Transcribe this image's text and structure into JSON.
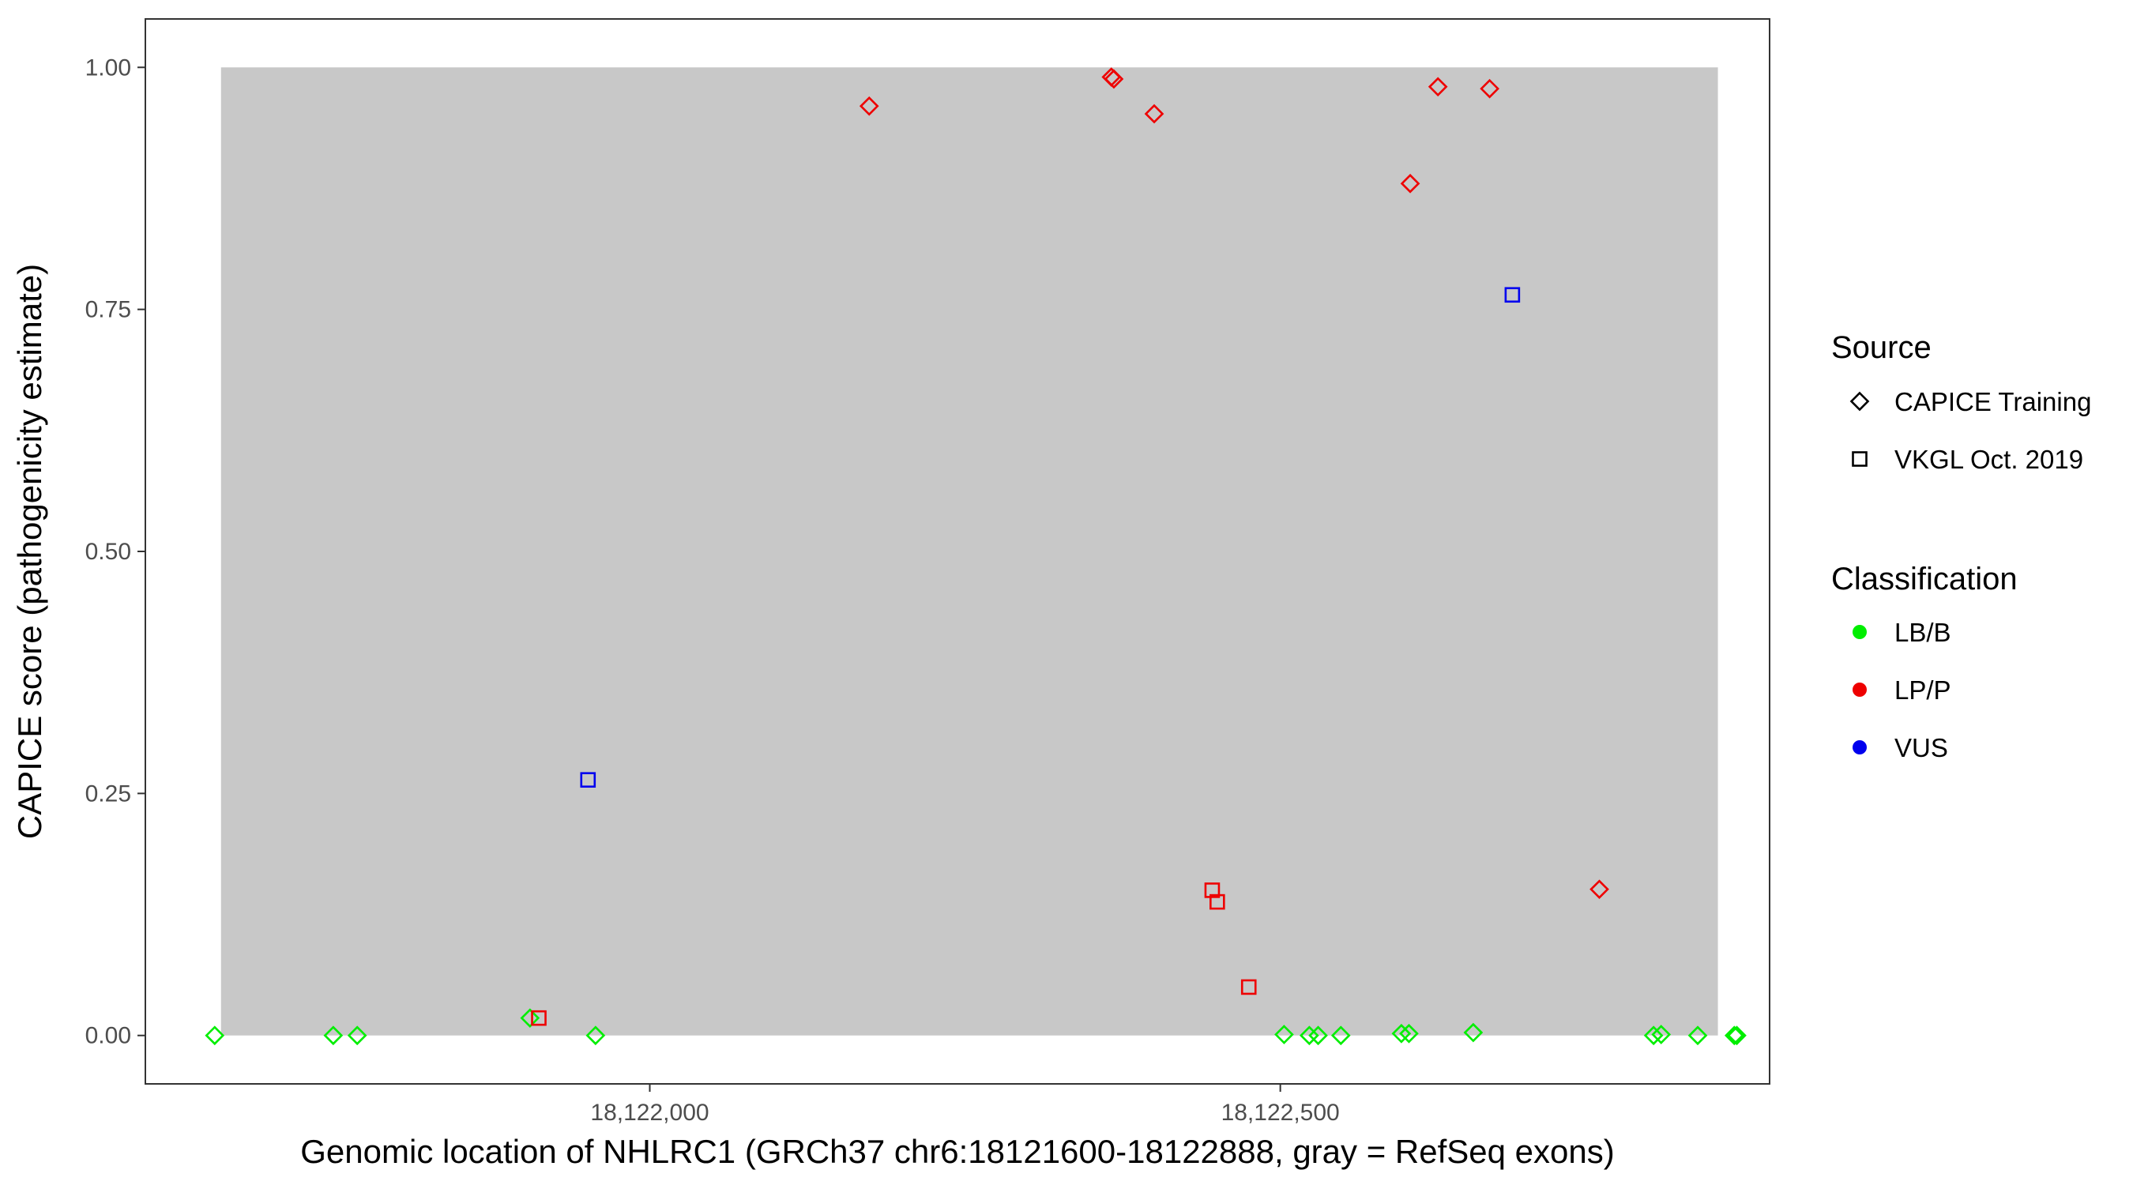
{
  "chart_data": {
    "type": "scatter",
    "xlabel": "Genomic location of NHLRC1 (GRCh37 chr6:18121600-18122888, gray = RefSeq exons)",
    "ylabel": "CAPICE score (pathogenicity estimate)",
    "xlim": [
      18121600,
      18122888
    ],
    "ylim": [
      -0.05,
      1.05
    ],
    "x_ticks": [
      18122000,
      18122500
    ],
    "x_tick_labels": [
      "18,122,000",
      "18,122,500"
    ],
    "y_ticks": [
      0,
      0.25,
      0.5,
      0.75,
      1.0
    ],
    "y_tick_labels": [
      "0.00",
      "0.25",
      "0.50",
      "0.75",
      "1.00"
    ],
    "grid": false,
    "exon_region": [
      18121660,
      18122847
    ],
    "legend_position": "right",
    "legends": {
      "source": {
        "title": "Source",
        "items": [
          {
            "label": "CAPICE Training",
            "shape": "diamond"
          },
          {
            "label": "VKGL Oct. 2019",
            "shape": "square"
          }
        ]
      },
      "classification": {
        "title": "Classification",
        "items": [
          {
            "label": "LB/B",
            "color": "#00ee00"
          },
          {
            "label": "LP/P",
            "color": "#ee0000"
          },
          {
            "label": "VUS",
            "color": "#0000ee"
          }
        ]
      }
    },
    "points": [
      {
        "x": 18121655,
        "y": 0.0,
        "source": "CAPICE Training",
        "classification": "LB/B"
      },
      {
        "x": 18121749,
        "y": 0.0,
        "source": "CAPICE Training",
        "classification": "LB/B"
      },
      {
        "x": 18121768,
        "y": 0.0,
        "source": "CAPICE Training",
        "classification": "LB/B"
      },
      {
        "x": 18121905,
        "y": 0.018,
        "source": "CAPICE Training",
        "classification": "LB/B"
      },
      {
        "x": 18121912,
        "y": 0.018,
        "source": "VKGL Oct. 2019",
        "classification": "LP/P"
      },
      {
        "x": 18121951,
        "y": 0.264,
        "source": "VKGL Oct. 2019",
        "classification": "VUS"
      },
      {
        "x": 18121957,
        "y": 0.0,
        "source": "CAPICE Training",
        "classification": "LB/B"
      },
      {
        "x": 18122174,
        "y": 0.96,
        "source": "CAPICE Training",
        "classification": "LP/P"
      },
      {
        "x": 18122366,
        "y": 0.99,
        "source": "CAPICE Training",
        "classification": "LP/P"
      },
      {
        "x": 18122368,
        "y": 0.988,
        "source": "CAPICE Training",
        "classification": "LP/P"
      },
      {
        "x": 18122400,
        "y": 0.952,
        "source": "CAPICE Training",
        "classification": "LP/P"
      },
      {
        "x": 18122446,
        "y": 0.15,
        "source": "VKGL Oct. 2019",
        "classification": "LP/P"
      },
      {
        "x": 18122450,
        "y": 0.138,
        "source": "VKGL Oct. 2019",
        "classification": "LP/P"
      },
      {
        "x": 18122475,
        "y": 0.05,
        "source": "VKGL Oct. 2019",
        "classification": "LP/P"
      },
      {
        "x": 18122503,
        "y": 0.001,
        "source": "CAPICE Training",
        "classification": "LB/B"
      },
      {
        "x": 18122523,
        "y": 0.0,
        "source": "CAPICE Training",
        "classification": "LB/B"
      },
      {
        "x": 18122530,
        "y": 0.0,
        "source": "CAPICE Training",
        "classification": "LB/B"
      },
      {
        "x": 18122548,
        "y": 0.0,
        "source": "CAPICE Training",
        "classification": "LB/B"
      },
      {
        "x": 18122596,
        "y": 0.002,
        "source": "CAPICE Training",
        "classification": "LB/B"
      },
      {
        "x": 18122602,
        "y": 0.002,
        "source": "CAPICE Training",
        "classification": "LB/B"
      },
      {
        "x": 18122603,
        "y": 0.88,
        "source": "CAPICE Training",
        "classification": "LP/P"
      },
      {
        "x": 18122625,
        "y": 0.98,
        "source": "CAPICE Training",
        "classification": "LP/P"
      },
      {
        "x": 18122653,
        "y": 0.003,
        "source": "CAPICE Training",
        "classification": "LB/B"
      },
      {
        "x": 18122666,
        "y": 0.978,
        "source": "CAPICE Training",
        "classification": "LP/P"
      },
      {
        "x": 18122684,
        "y": 0.765,
        "source": "VKGL Oct. 2019",
        "classification": "VUS"
      },
      {
        "x": 18122753,
        "y": 0.151,
        "source": "CAPICE Training",
        "classification": "LP/P"
      },
      {
        "x": 18122796,
        "y": 0.0,
        "source": "CAPICE Training",
        "classification": "LB/B"
      },
      {
        "x": 18122802,
        "y": 0.001,
        "source": "CAPICE Training",
        "classification": "LB/B"
      },
      {
        "x": 18122831,
        "y": 0.0,
        "source": "CAPICE Training",
        "classification": "LB/B"
      },
      {
        "x": 18122860,
        "y": 0.0,
        "source": "CAPICE Training",
        "classification": "LB/B"
      },
      {
        "x": 18122862,
        "y": 0.0,
        "source": "CAPICE Training",
        "classification": "LB/B"
      }
    ]
  }
}
